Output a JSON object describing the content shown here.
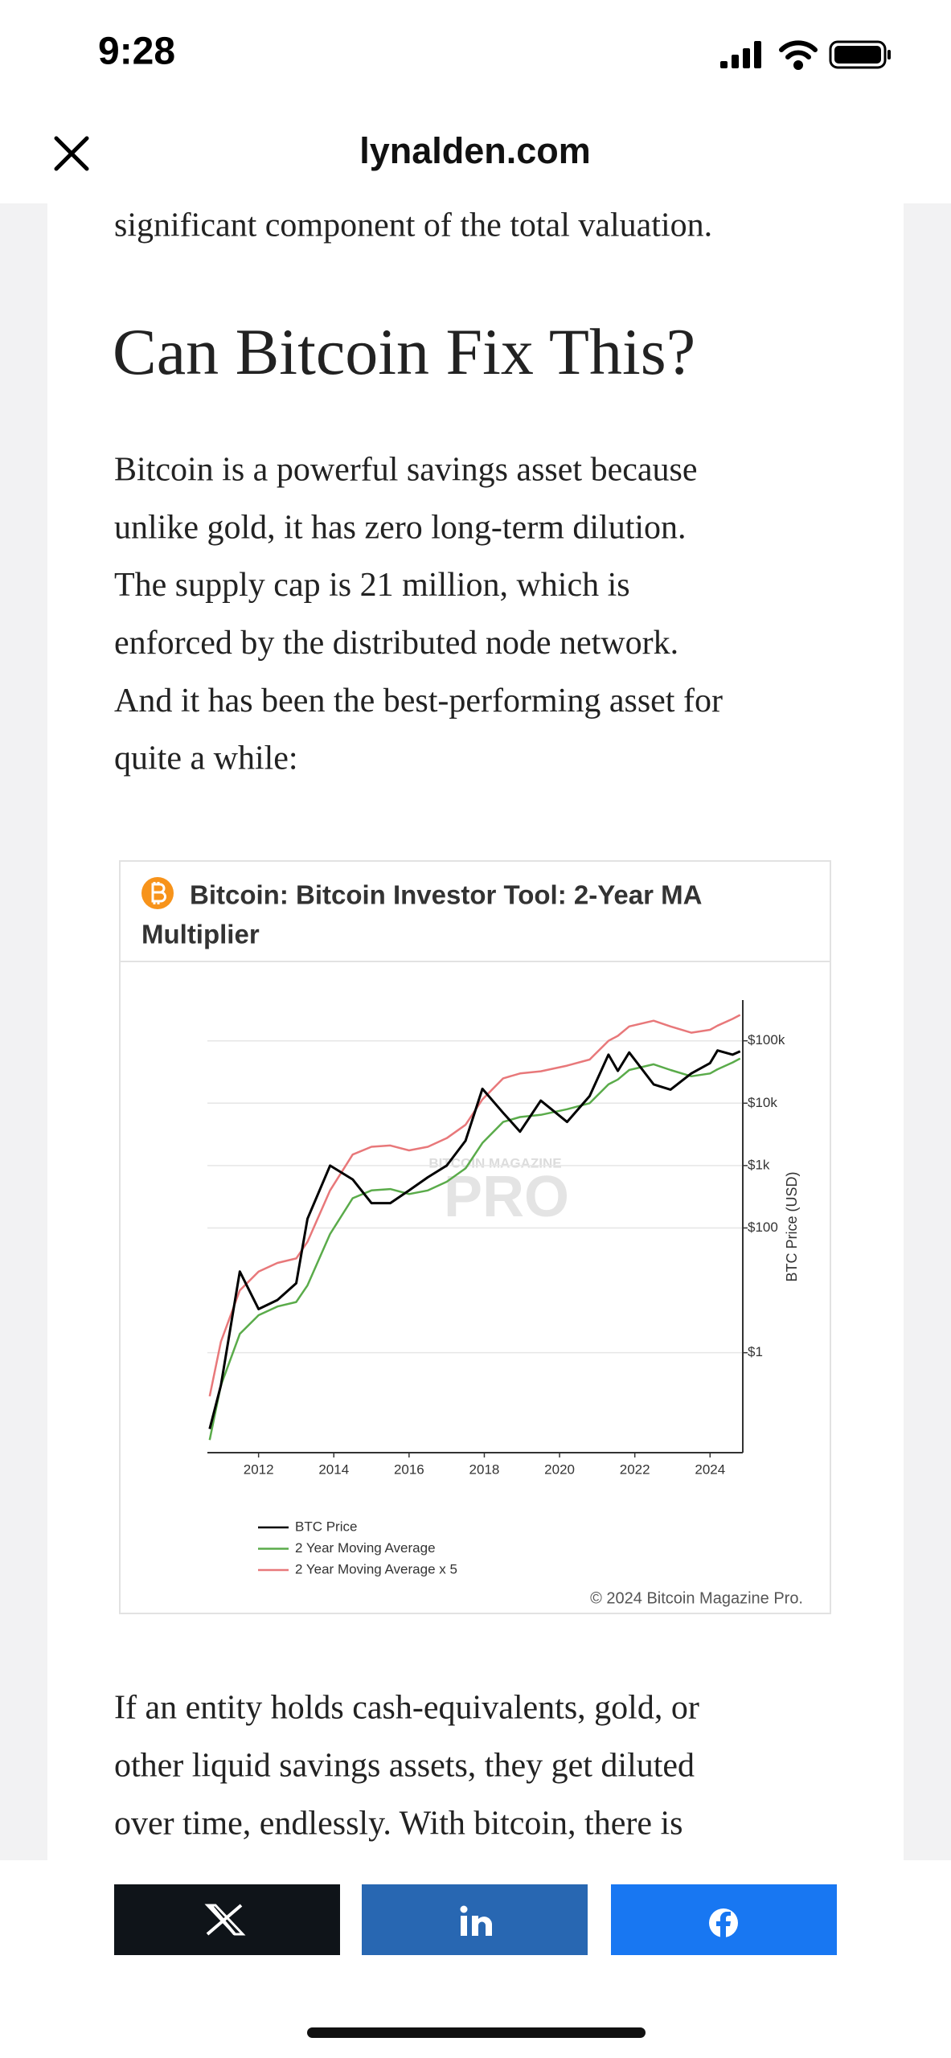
{
  "status_bar": {
    "time": "9:28"
  },
  "header": {
    "site": "lynalden.com"
  },
  "article": {
    "lead_line": "significant component of the total valuation.",
    "heading": "Can Bitcoin Fix This?",
    "paragraph_lines": [
      "Bitcoin is a powerful savings asset because",
      "unlike gold, it has zero long-term dilution.",
      "The supply cap is 21 million, which is",
      "enforced by the distributed node network.",
      "And it has been the best-performing asset for",
      "quite a while:"
    ],
    "closing_lines": [
      "If an entity holds cash-equivalents, gold, or",
      "other liquid savings assets, they get diluted",
      "over time, endlessly. With bitcoin, there is"
    ]
  },
  "chart_data": {
    "type": "line",
    "title_lines": [
      "Bitcoin: Bitcoin Investor Tool: 2-Year MA",
      "Multiplier"
    ],
    "watermark": [
      "BITCOIN MAGAZINE",
      "PRO"
    ],
    "y_label": "BTC Price (USD)",
    "copyright": "© 2024 Bitcoin Magazine Pro.",
    "x": [
      2010.7,
      2011.0,
      2011.5,
      2012.0,
      2012.5,
      2013.0,
      2013.3,
      2013.9,
      2014.5,
      2015.0,
      2015.5,
      2016.0,
      2016.5,
      2017.0,
      2017.5,
      2017.95,
      2018.5,
      2018.95,
      2019.5,
      2020.2,
      2020.8,
      2021.3,
      2021.55,
      2021.85,
      2022.5,
      2022.95,
      2023.5,
      2024.0,
      2024.2,
      2024.6,
      2024.8
    ],
    "xlim": [
      2010.64,
      2024.87
    ],
    "xticks": [
      2012,
      2014,
      2016,
      2018,
      2020,
      2022,
      2024
    ],
    "ylim": [
      0.025,
      450000
    ],
    "y_scale": "log",
    "yticks": [
      {
        "value": 1,
        "label": "$1"
      },
      {
        "value": 100,
        "label": "$100"
      },
      {
        "value": 1000,
        "label": "$1k"
      },
      {
        "value": 10000,
        "label": "$10k"
      },
      {
        "value": 100000,
        "label": "$100k"
      }
    ],
    "grid": true,
    "legend": "lower left",
    "series": [
      {
        "name": "BTC Price",
        "color": "#000000",
        "values": [
          0.06,
          0.3,
          20,
          5,
          7,
          13,
          140,
          1000,
          600,
          250,
          250,
          400,
          650,
          1000,
          2500,
          17000,
          7000,
          3500,
          11000,
          5000,
          13000,
          60000,
          33000,
          65000,
          20000,
          16500,
          30000,
          44000,
          70000,
          60000,
          68000
        ]
      },
      {
        "name": "2 Year Moving Average",
        "color": "#5aab4a",
        "values": [
          0.04,
          0.3,
          2,
          4,
          5.5,
          6.5,
          12,
          80,
          300,
          400,
          420,
          350,
          400,
          550,
          900,
          2300,
          5000,
          6000,
          6500,
          8000,
          10000,
          20000,
          24000,
          34000,
          42000,
          34000,
          27000,
          30000,
          35000,
          45000,
          52000
        ]
      },
      {
        "name": "2 Year Moving Average x 5",
        "color": "#e8787a",
        "values": [
          0.2,
          1.5,
          10,
          20,
          27.5,
          32.5,
          60,
          400,
          1500,
          2000,
          2100,
          1750,
          2000,
          2750,
          4500,
          11500,
          25000,
          30000,
          32500,
          40000,
          50000,
          100000,
          120000,
          170000,
          210000,
          170000,
          135000,
          150000,
          175000,
          225000,
          260000
        ]
      }
    ]
  }
}
